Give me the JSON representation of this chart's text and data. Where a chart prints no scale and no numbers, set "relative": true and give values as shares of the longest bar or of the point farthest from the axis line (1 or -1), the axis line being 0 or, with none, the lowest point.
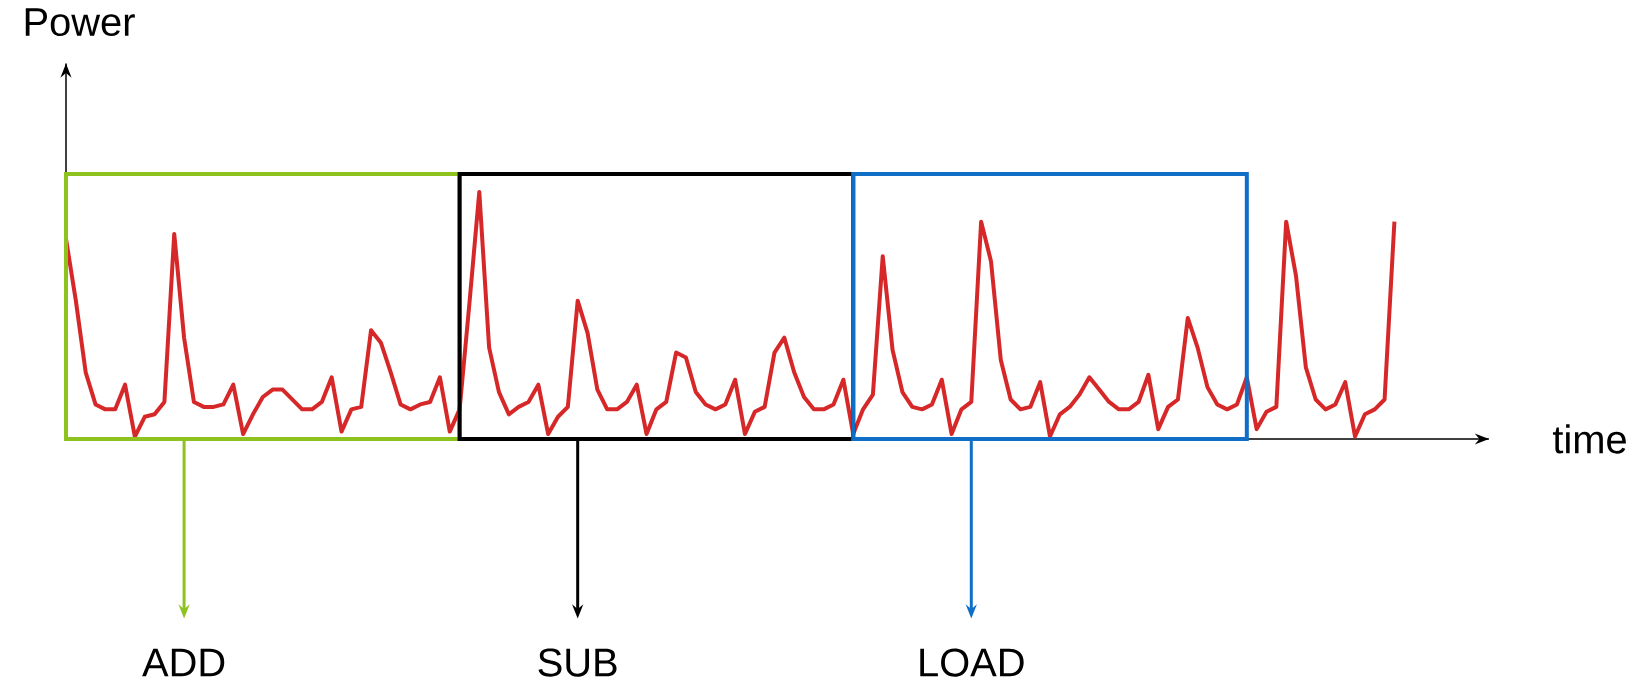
{
  "chart_data": {
    "type": "line",
    "relative": true,
    "xlabel": "time",
    "ylabel": "Power",
    "categories": [
      null,
      null,
      null,
      null,
      null,
      null,
      null,
      null,
      null,
      null,
      null,
      null,
      null,
      null,
      null,
      null,
      null,
      null,
      null,
      null,
      null,
      null,
      null,
      null,
      null,
      null,
      null,
      null,
      null,
      null,
      null,
      null,
      null,
      null,
      null,
      null,
      null,
      null,
      null,
      null,
      null,
      null,
      null,
      null,
      null,
      null,
      null,
      null,
      null,
      null,
      null,
      null,
      null,
      null,
      null,
      null,
      null,
      null,
      null,
      null,
      null,
      null,
      null,
      null,
      null,
      null,
      null,
      null,
      null,
      null,
      null,
      null,
      null,
      null,
      null,
      null,
      null,
      null,
      null,
      null,
      null,
      null,
      null,
      null,
      null,
      null,
      null,
      null,
      null,
      null,
      null,
      null,
      null,
      null,
      null,
      null,
      null,
      null,
      null,
      null,
      null,
      null,
      null,
      null,
      null,
      null,
      null,
      null,
      null,
      null,
      null,
      null,
      null,
      null,
      null,
      null,
      null,
      null,
      null,
      null,
      null,
      null,
      null,
      null,
      null,
      null,
      null,
      null,
      null,
      null,
      null,
      null,
      null,
      null,
      null,
      null
    ],
    "series": [
      {
        "color": "#d62828",
        "values": [
          0.81,
          0.56,
          0.27,
          0.14,
          0.12,
          0.12,
          0.22,
          0.01,
          0.09,
          0.1,
          0.15,
          0.83,
          0.41,
          0.15,
          0.13,
          0.13,
          0.14,
          0.22,
          0.02,
          0.1,
          0.17,
          0.2,
          0.2,
          0.16,
          0.12,
          0.12,
          0.15,
          0.25,
          0.03,
          0.12,
          0.13,
          0.44,
          0.39,
          0.27,
          0.14,
          0.12,
          0.14,
          0.15,
          0.25,
          0.03,
          0.12,
          0.55,
          1.0,
          0.37,
          0.19,
          0.1,
          0.13,
          0.15,
          0.22,
          0.02,
          0.09,
          0.13,
          0.56,
          0.43,
          0.2,
          0.12,
          0.12,
          0.15,
          0.22,
          0.02,
          0.12,
          0.15,
          0.35,
          0.33,
          0.19,
          0.14,
          0.12,
          0.14,
          0.24,
          0.02,
          0.11,
          0.13,
          0.35,
          0.41,
          0.27,
          0.17,
          0.12,
          0.12,
          0.14,
          0.24,
          0.02,
          0.12,
          0.18,
          0.74,
          0.36,
          0.19,
          0.13,
          0.12,
          0.14,
          0.24,
          0.02,
          0.12,
          0.15,
          0.88,
          0.72,
          0.32,
          0.16,
          0.12,
          0.13,
          0.23,
          0.01,
          0.1,
          0.13,
          0.18,
          0.25,
          0.2,
          0.15,
          0.12,
          0.12,
          0.15,
          0.26,
          0.04,
          0.13,
          0.16,
          0.49,
          0.37,
          0.21,
          0.14,
          0.12,
          0.14,
          0.25,
          0.04,
          0.11,
          0.13,
          0.88,
          0.66,
          0.29,
          0.16,
          0.12,
          0.14,
          0.23,
          0.01,
          0.1,
          0.12,
          0.16,
          0.88
        ]
      }
    ],
    "annotations": [
      "ADD",
      "SUB",
      "LOAD"
    ]
  }
}
